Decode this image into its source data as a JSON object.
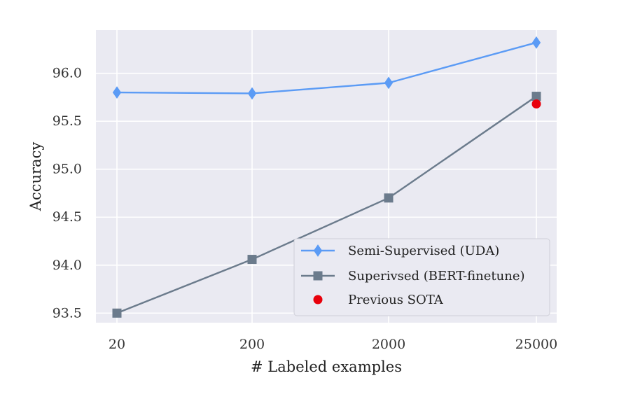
{
  "chart_data": {
    "type": "line",
    "title": "",
    "xlabel": "# Labeled examples",
    "ylabel": "Accuracy",
    "categories": [
      "20",
      "200",
      "2000",
      "25000"
    ],
    "ylim": [
      93.4,
      96.45
    ],
    "yticks": [
      "93.5",
      "94.0",
      "94.5",
      "95.0",
      "95.5",
      "96.0"
    ],
    "grid": true,
    "legend_position": "bottom-right",
    "series": [
      {
        "name": "Semi-Supervised (UDA)",
        "marker": "diamond",
        "color": "#5b9bf5",
        "values": [
          95.8,
          95.79,
          95.9,
          96.32
        ]
      },
      {
        "name": "Superivsed (BERT-finetune)",
        "marker": "square",
        "color": "#6b7b8c",
        "values": [
          93.5,
          94.06,
          94.7,
          95.76
        ]
      },
      {
        "name": "Previous SOTA",
        "marker": "circle",
        "color": "#e8000b",
        "points": [
          {
            "category": "25000",
            "value": 95.68
          }
        ]
      }
    ]
  }
}
